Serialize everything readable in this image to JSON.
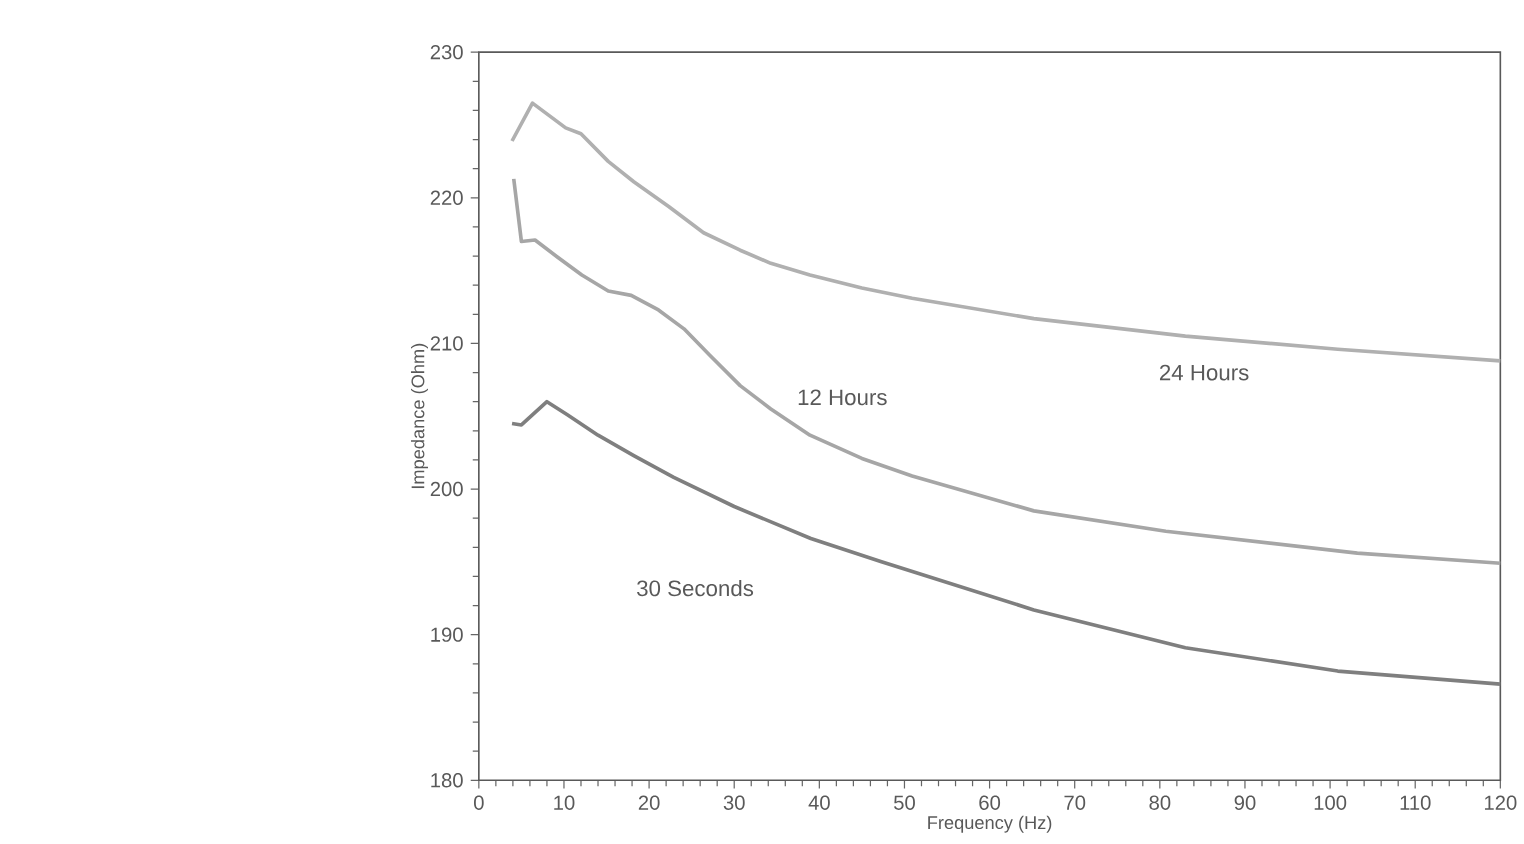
{
  "chart_data": {
    "type": "line",
    "xlabel": "Frequency (Hz)",
    "ylabel": "Impedance  (Ohm)",
    "xlim": [
      0,
      120
    ],
    "ylim": [
      180,
      230
    ],
    "xticks": [
      0,
      10,
      20,
      30,
      40,
      50,
      60,
      70,
      80,
      90,
      100,
      110,
      120
    ],
    "yticks": [
      180,
      190,
      200,
      210,
      220,
      230
    ],
    "grid": false,
    "legend": false,
    "marker": "none",
    "line_style": "solid",
    "series": [
      {
        "name": "30 Seconds",
        "color": "#7f7f7f",
        "x": [
          3.9,
          5,
          8,
          10.4,
          14,
          18.2,
          22.9,
          30,
          39,
          47.3,
          65.2,
          83,
          100.9,
          120
        ],
        "values": [
          204.5,
          204.4,
          206,
          205.1,
          203.7,
          202.3,
          200.8,
          198.8,
          196.6,
          195,
          191.7,
          189.1,
          187.5,
          186.6
        ]
      },
      {
        "name": "12 Hours",
        "color": "#a6a6a6",
        "x": [
          4.1,
          5,
          6.6,
          9.3,
          12.1,
          15.2,
          17.9,
          21.1,
          24.1,
          27.1,
          30.7,
          34.3,
          38.9,
          45,
          50.9,
          65.2,
          80.7,
          103.2,
          120
        ],
        "values": [
          221.3,
          217,
          217.1,
          215.9,
          214.7,
          213.6,
          213.3,
          212.3,
          211,
          209.2,
          207.1,
          205.5,
          203.7,
          202.1,
          200.9,
          198.5,
          197.1,
          195.6,
          194.9
        ]
      },
      {
        "name": "24 Hours",
        "color": "#b0b0b0",
        "x": [
          3.9,
          6.3,
          10.2,
          12,
          15.2,
          18.2,
          22.3,
          26.4,
          30.7,
          34.3,
          38.9,
          45,
          50.9,
          65.2,
          83,
          100.9,
          120
        ],
        "values": [
          223.9,
          226.5,
          224.8,
          224.4,
          222.5,
          221.1,
          219.4,
          217.6,
          216.4,
          215.5,
          214.7,
          213.8,
          213.1,
          211.7,
          210.5,
          209.6,
          208.8
        ]
      }
    ]
  }
}
